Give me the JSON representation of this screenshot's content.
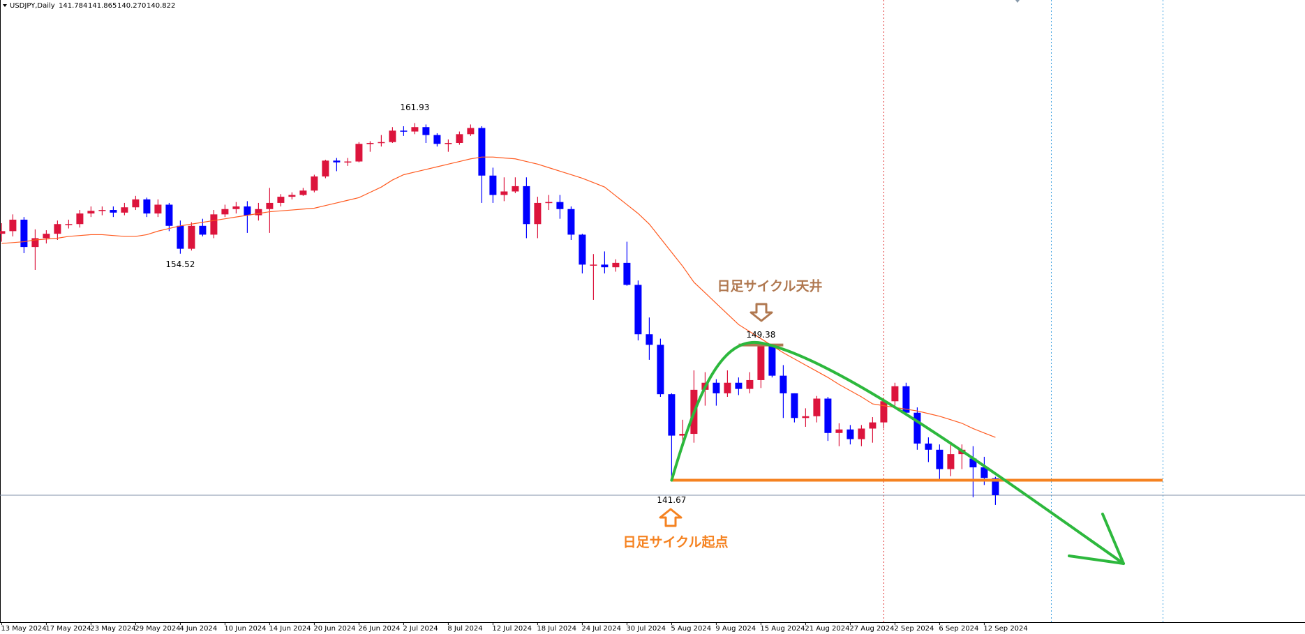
{
  "chart_data": {
    "type": "candlestick",
    "title": "USDJPY,Daily",
    "header_values": [
      "141.784",
      "141.865",
      "140.270",
      "140.822"
    ],
    "top_label": "日足サイクル天井",
    "start_label": "日足サイクル起点",
    "up_color": "#dc143c",
    "down_color": "#0000ff",
    "ma_color": "#ff5a1f",
    "ylim": [
      133.62,
      168.91
    ],
    "categories": [
      "13 May 2024",
      null,
      null,
      null,
      "17 May 2024",
      null,
      null,
      null,
      "23 May 2024",
      null,
      null,
      null,
      "29 May 2024",
      null,
      null,
      null,
      "4 Jun 2024",
      null,
      null,
      null,
      "10 Jun 2024",
      null,
      null,
      null,
      "14 Jun 2024",
      null,
      null,
      null,
      "20 Jun 2024",
      null,
      null,
      null,
      "26 Jun 2024",
      null,
      null,
      null,
      "2 Jul 2024",
      null,
      null,
      null,
      "8 Jul 2024",
      null,
      null,
      null,
      "12 Jul 2024",
      null,
      null,
      null,
      "18 Jul 2024",
      null,
      null,
      null,
      "24 Jul 2024",
      null,
      null,
      null,
      "30 Jul 2024",
      null,
      null,
      null,
      "5 Aug 2024",
      null,
      null,
      null,
      "9 Aug 2024",
      null,
      null,
      null,
      "15 Aug 2024",
      null,
      null,
      null,
      "21 Aug 2024",
      null,
      null,
      null,
      "27 Aug 2024",
      null,
      null,
      null,
      "2 Sep 2024",
      null,
      null,
      null,
      "6 Sep 2024",
      null,
      null,
      null,
      "12 Sep 2024",
      null
    ],
    "open": [
      155.65,
      155.8,
      156.45,
      154.9,
      155.4,
      155.65,
      156.2,
      156.2,
      156.8,
      156.95,
      157.0,
      156.85,
      157.15,
      157.6,
      156.8,
      157.3,
      156.1,
      154.8,
      156.1,
      155.6,
      156.75,
      157.05,
      157.2,
      156.7,
      157.05,
      157.4,
      157.75,
      157.85,
      158.1,
      158.9,
      159.8,
      159.7,
      159.75,
      160.75,
      160.8,
      160.85,
      161.5,
      161.45,
      161.7,
      161.25,
      160.75,
      160.8,
      161.3,
      161.65,
      158.95,
      157.85,
      158.05,
      158.35,
      156.2,
      157.4,
      157.45,
      157.05,
      155.6,
      153.9,
      153.9,
      153.75,
      154.0,
      152.75,
      149.95,
      149.35,
      146.55,
      144.2,
      144.3,
      146.8,
      147.2,
      146.6,
      147.2,
      146.85,
      147.35,
      149.3,
      147.6,
      146.6,
      145.2,
      145.3,
      146.3,
      144.35,
      144.55,
      144.0,
      144.6,
      144.95,
      146.15,
      147.0,
      145.5,
      143.75,
      143.4,
      142.3,
      143.15,
      142.9,
      142.4,
      141.784
    ],
    "high": [
      156.25,
      156.75,
      156.6,
      155.9,
      155.85,
      156.4,
      156.45,
      157.0,
      157.2,
      157.2,
      157.2,
      157.4,
      157.8,
      157.7,
      157.6,
      157.4,
      156.4,
      156.3,
      156.5,
      157.0,
      157.3,
      157.45,
      157.5,
      157.4,
      158.25,
      157.9,
      158.0,
      158.25,
      159.0,
      159.85,
      159.95,
      159.95,
      160.85,
      160.9,
      161.25,
      161.7,
      161.75,
      161.93,
      161.85,
      161.35,
      161.0,
      161.45,
      161.85,
      161.75,
      159.4,
      158.85,
      158.85,
      158.85,
      157.75,
      157.85,
      157.85,
      157.2,
      155.65,
      154.5,
      154.65,
      154.2,
      155.2,
      153.0,
      150.9,
      149.7,
      146.6,
      145.1,
      147.9,
      147.8,
      147.4,
      147.9,
      147.5,
      147.8,
      149.38,
      149.3,
      148.2,
      146.6,
      145.75,
      146.45,
      146.4,
      144.9,
      144.8,
      144.8,
      145.25,
      146.25,
      147.2,
      147.2,
      145.8,
      144.1,
      143.7,
      143.8,
      143.7,
      143.6,
      143.0,
      141.865
    ],
    "low": [
      155.2,
      155.5,
      154.55,
      153.6,
      155.1,
      155.3,
      155.95,
      156.0,
      156.6,
      156.7,
      156.6,
      156.7,
      157.0,
      156.6,
      156.6,
      155.8,
      154.52,
      154.7,
      155.5,
      155.4,
      156.6,
      156.8,
      155.7,
      156.4,
      155.7,
      157.2,
      157.6,
      157.8,
      158.0,
      158.8,
      159.2,
      159.5,
      159.7,
      160.3,
      160.6,
      160.8,
      161.2,
      161.3,
      160.8,
      160.6,
      160.3,
      160.7,
      161.2,
      157.4,
      157.4,
      157.5,
      157.95,
      155.4,
      155.4,
      157.0,
      156.5,
      155.3,
      153.4,
      151.9,
      153.4,
      153.5,
      152.7,
      149.6,
      148.5,
      146.4,
      141.67,
      143.6,
      143.8,
      145.9,
      145.9,
      146.4,
      146.5,
      146.6,
      146.9,
      147.5,
      145.2,
      144.95,
      144.7,
      144.95,
      143.9,
      143.6,
      143.7,
      143.6,
      143.8,
      144.6,
      145.9,
      145.4,
      143.4,
      142.7,
      141.75,
      141.9,
      142.3,
      140.7,
      141.4,
      140.27
    ],
    "close": [
      155.8,
      156.45,
      154.9,
      155.4,
      155.65,
      156.2,
      156.2,
      156.8,
      156.95,
      157.0,
      156.85,
      157.15,
      157.6,
      156.8,
      157.3,
      156.1,
      154.8,
      156.1,
      155.6,
      156.75,
      157.05,
      157.2,
      156.7,
      157.05,
      157.4,
      157.75,
      157.85,
      158.1,
      158.9,
      159.8,
      159.7,
      159.75,
      160.75,
      160.8,
      160.85,
      161.5,
      161.45,
      161.7,
      161.25,
      160.75,
      160.8,
      161.3,
      161.65,
      158.95,
      157.85,
      158.05,
      158.35,
      156.2,
      157.4,
      157.45,
      157.05,
      155.6,
      153.9,
      153.9,
      153.75,
      154.0,
      152.75,
      149.95,
      149.35,
      146.55,
      144.2,
      144.3,
      146.8,
      147.2,
      146.6,
      147.2,
      146.85,
      147.35,
      149.3,
      147.6,
      146.6,
      145.2,
      145.3,
      146.3,
      144.35,
      144.55,
      144.0,
      144.6,
      144.95,
      146.15,
      147.0,
      145.5,
      143.75,
      143.4,
      142.3,
      143.15,
      143.4,
      142.4,
      141.8,
      140.822
    ],
    "ma": [
      155.1,
      155.15,
      155.2,
      155.3,
      155.35,
      155.4,
      155.5,
      155.55,
      155.6,
      155.6,
      155.55,
      155.5,
      155.5,
      155.6,
      155.8,
      155.95,
      156.1,
      156.2,
      156.3,
      156.4,
      156.5,
      156.6,
      156.7,
      156.8,
      156.9,
      156.95,
      157.0,
      157.05,
      157.1,
      157.25,
      157.4,
      157.55,
      157.7,
      158.0,
      158.3,
      158.7,
      159.0,
      159.15,
      159.3,
      159.45,
      159.6,
      159.75,
      159.9,
      160.0,
      160.0,
      159.95,
      159.9,
      159.75,
      159.6,
      159.4,
      159.2,
      159.0,
      158.8,
      158.55,
      158.3,
      157.8,
      157.3,
      156.8,
      156.2,
      155.4,
      154.6,
      153.8,
      152.9,
      152.3,
      151.7,
      151.1,
      150.5,
      150.1,
      149.7,
      149.3,
      148.9,
      148.55,
      148.2,
      147.85,
      147.5,
      147.1,
      146.75,
      146.4,
      146.0,
      145.9,
      145.8,
      145.7,
      145.6,
      145.45,
      145.3,
      145.1,
      144.9,
      144.6,
      144.35,
      144.1
    ]
  }
}
